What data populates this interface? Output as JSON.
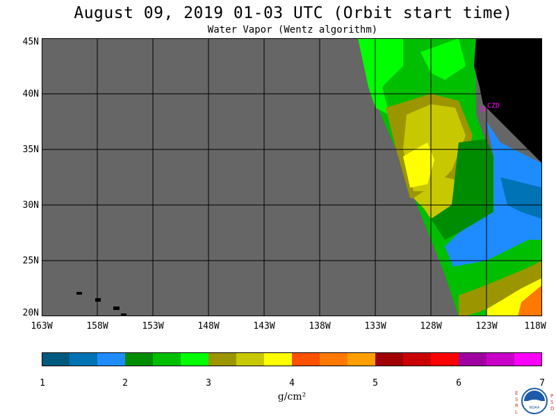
{
  "header": {
    "title": "August 09, 2019  01-03 UTC  (Orbit start time)",
    "subtitle": "Water Vapor (Wentz algorithm)"
  },
  "map": {
    "lat_labels": [
      "45N",
      "40N",
      "35N",
      "30N",
      "25N",
      "20N"
    ],
    "lon_labels": [
      "163W",
      "158W",
      "153W",
      "148W",
      "143W",
      "138W",
      "133W",
      "128W",
      "123W",
      "118W"
    ],
    "marker_label": "CZD",
    "colors": {
      "no_data": "#666666",
      "land": "#000000",
      "grid": "#000000",
      "marker": "#ff00ff"
    }
  },
  "colorbar": {
    "tick_labels": [
      "1",
      "2",
      "3",
      "4",
      "5",
      "6",
      "7"
    ],
    "units": "g/cm²",
    "colors": [
      "#005a7f",
      "#0073b5",
      "#1e8cff",
      "#008c00",
      "#00be00",
      "#00ff00",
      "#9b9600",
      "#c8c800",
      "#ffff00",
      "#ff5000",
      "#ff7800",
      "#ffa000",
      "#a00000",
      "#c80000",
      "#ff0000",
      "#a000a0",
      "#c800c8",
      "#ff00ff"
    ]
  },
  "logo": {
    "left_letters": [
      "E",
      "S",
      "R",
      "L"
    ],
    "right_letters": [
      "P",
      "S",
      "D"
    ],
    "center_text": "NOAA"
  }
}
